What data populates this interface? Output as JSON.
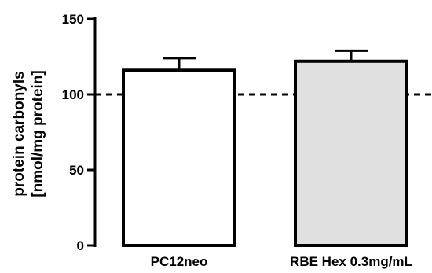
{
  "chart_data": {
    "type": "bar",
    "title": "",
    "xlabel": "",
    "ylabel_lines": [
      "protein carbonyls",
      "[nmol/mg protein]"
    ],
    "categories": [
      "PC12neo",
      "RBE Hex 0.3mg/mL"
    ],
    "values": [
      116,
      122
    ],
    "error_plus": [
      8,
      7
    ],
    "bar_fill_colors": [
      "#ffffff",
      "#e0e0e0"
    ],
    "ylim": [
      0,
      150
    ],
    "yticks": [
      0,
      50,
      100,
      150
    ],
    "reference_line": 100,
    "grid": false,
    "legend": "none"
  }
}
